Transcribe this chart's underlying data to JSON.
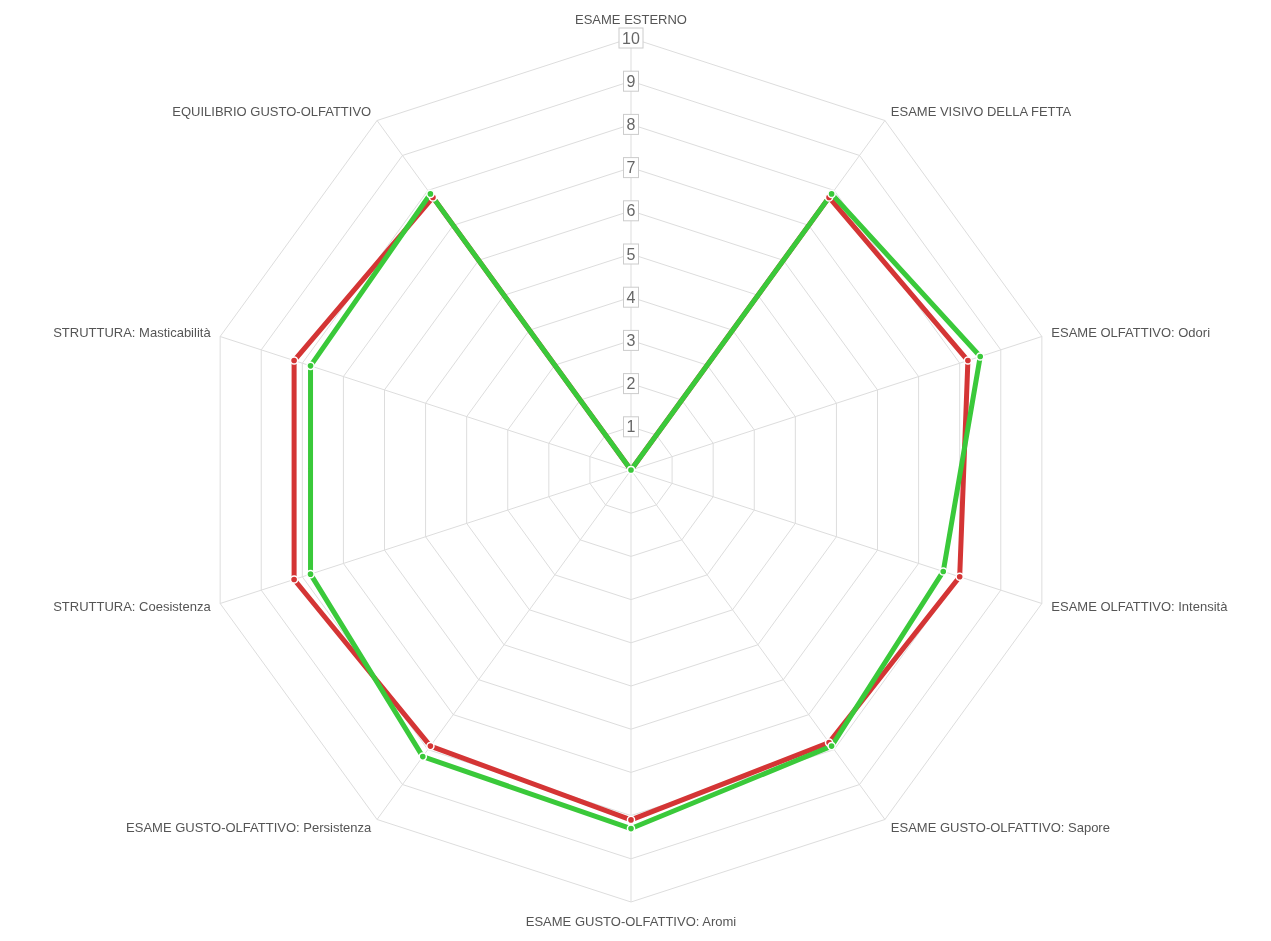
{
  "chart_data": {
    "type": "radar",
    "categories": [
      "ESAME ESTERNO",
      "ESAME VISIVO DELLA FETTA",
      "ESAME OLFATTIVO: Odori",
      "ESAME OLFATTIVO: Intensità",
      "ESAME GUSTO-OLFATTIVO: Sapore",
      "ESAME GUSTO-OLFATTIVO: Aromi",
      "ESAME GUSTO-OLFATTIVO: Persistenza",
      "STRUTTURA: Coesistenza",
      "STRUTTURA: Masticabilità",
      "EQUILIBRIO GUSTO-OLFATTIVO"
    ],
    "series": [
      {
        "color": "#d43535",
        "values": [
          0,
          7.8,
          8.2,
          8.0,
          7.8,
          8.1,
          7.9,
          8.2,
          8.2,
          7.8
        ]
      },
      {
        "color": "#3ac93a",
        "values": [
          0,
          7.9,
          8.5,
          7.6,
          7.9,
          8.3,
          8.2,
          7.8,
          7.8,
          7.9
        ]
      }
    ],
    "ylim": [
      0,
      10
    ],
    "yticks": [
      1,
      2,
      3,
      4,
      5,
      6,
      7,
      8,
      9,
      10
    ],
    "grid": true,
    "marker": "circle"
  }
}
